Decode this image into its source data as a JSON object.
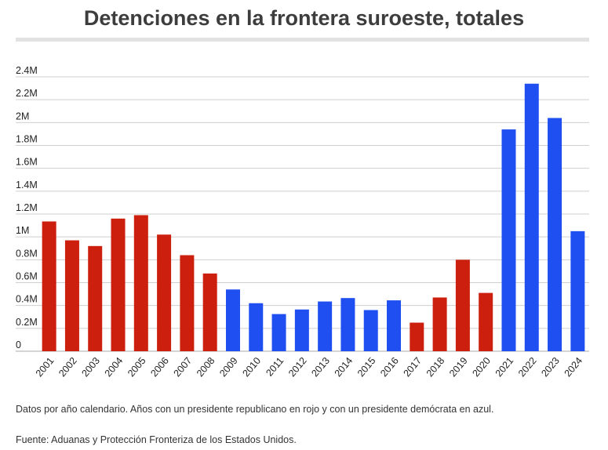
{
  "chart_data": {
    "type": "bar",
    "title": "Detenciones en la frontera suroeste, totales",
    "xlabel": "",
    "ylabel": "",
    "ylim": [
      0,
      2400000
    ],
    "y_ticks": [
      {
        "value": 0,
        "label": "0"
      },
      {
        "value": 200000,
        "label": "0.2M"
      },
      {
        "value": 400000,
        "label": "0.4M"
      },
      {
        "value": 600000,
        "label": "0.6M"
      },
      {
        "value": 800000,
        "label": "0.8M"
      },
      {
        "value": 1000000,
        "label": "1M"
      },
      {
        "value": 1200000,
        "label": "1.2M"
      },
      {
        "value": 1400000,
        "label": "1.4M"
      },
      {
        "value": 1600000,
        "label": "1.6M"
      },
      {
        "value": 1800000,
        "label": "1.8M"
      },
      {
        "value": 2000000,
        "label": "2M"
      },
      {
        "value": 2200000,
        "label": "2.2M"
      },
      {
        "value": 2400000,
        "label": "2.4M"
      }
    ],
    "grid": true,
    "legend": "none",
    "categories": [
      "2001",
      "2002",
      "2003",
      "2004",
      "2005",
      "2006",
      "2007",
      "2008",
      "2009",
      "2010",
      "2011",
      "2012",
      "2013",
      "2014",
      "2015",
      "2016",
      "2017",
      "2018",
      "2019",
      "2020",
      "2021",
      "2022",
      "2023",
      "2024"
    ],
    "values": [
      1135000,
      970000,
      920000,
      1160000,
      1190000,
      1020000,
      840000,
      680000,
      540000,
      420000,
      325000,
      365000,
      435000,
      465000,
      360000,
      445000,
      250000,
      470000,
      800000,
      510000,
      1940000,
      2340000,
      2040000,
      1050000
    ],
    "party": [
      "R",
      "R",
      "R",
      "R",
      "R",
      "R",
      "R",
      "R",
      "D",
      "D",
      "D",
      "D",
      "D",
      "D",
      "D",
      "D",
      "R",
      "R",
      "R",
      "R",
      "D",
      "D",
      "D",
      "D"
    ],
    "colors": {
      "R": "#cc1f0e",
      "D": "#1f4ff0"
    }
  },
  "footer": {
    "note": "Datos por año calendario. Años con un presidente republicano en rojo y con un presidente demócrata en azul.",
    "source": "Fuente: Aduanas y Protección Fronteriza de los Estados Unidos."
  }
}
